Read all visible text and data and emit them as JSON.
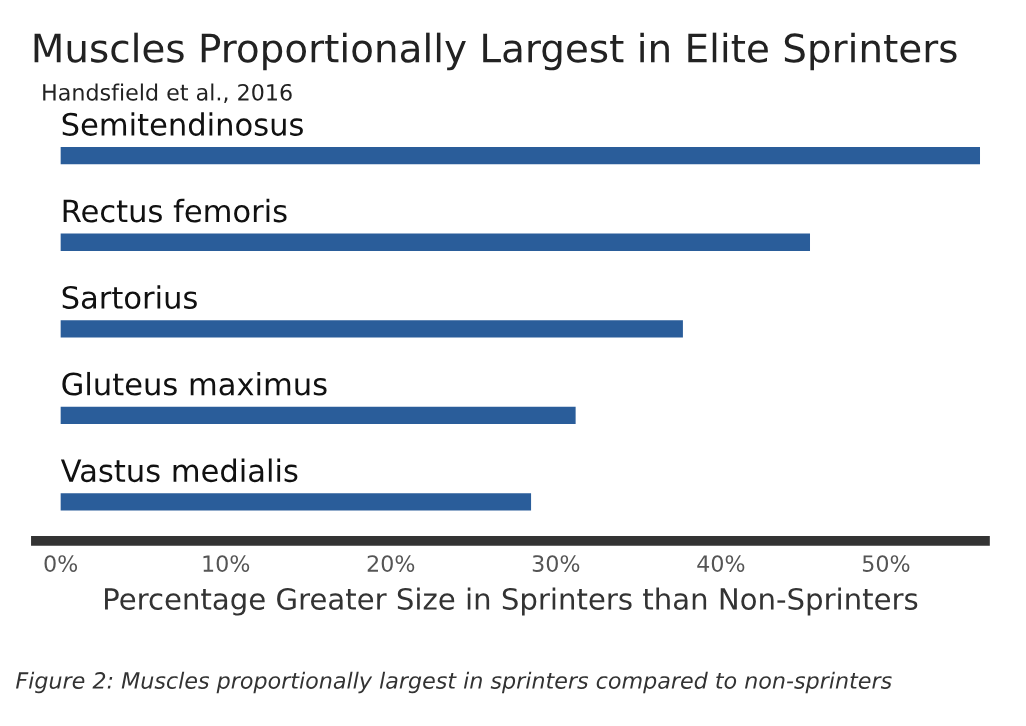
{
  "chart_data": {
    "type": "bar",
    "orientation": "horizontal",
    "title": "Muscles Proportionally Largest in Elite Sprinters",
    "subtitle": "Handsfield et al., 2016",
    "xlabel": "Percentage Greater Size in Sprinters than Non-Sprinters",
    "categories": [
      "Semitendinosus",
      "Rectus femoris",
      "Sartorius",
      "Gluteus maximus",
      "Vastus medialis"
    ],
    "values": [
      55.7,
      45.4,
      37.7,
      31.2,
      28.5
    ],
    "color": "#2a5d9a",
    "xlim": [
      -1.5,
      56
    ],
    "xticks": [
      {
        "value": 0,
        "label": "0%"
      },
      {
        "value": 10,
        "label": "10%"
      },
      {
        "value": 20,
        "label": "20%"
      },
      {
        "value": 30,
        "label": "30%"
      },
      {
        "value": 40,
        "label": "40%"
      },
      {
        "value": 50,
        "label": "50%"
      }
    ],
    "grid": false,
    "legend": false,
    "annotations": [
      "Figure 2: Muscles proportionally largest in sprinters compared to non-sprinters"
    ]
  }
}
